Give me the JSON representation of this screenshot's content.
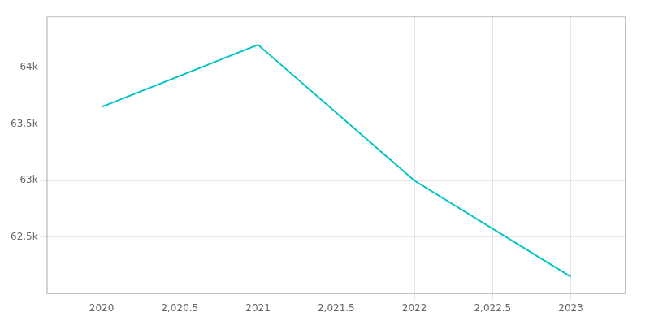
{
  "chart_data": {
    "type": "line",
    "x": [
      2020,
      2021,
      2022,
      2023
    ],
    "values": [
      63650,
      64200,
      63000,
      62150
    ],
    "color": "#00C4C4",
    "xlim": [
      2019.65,
      2023.35
    ],
    "xticks": [
      2020,
      {
        "value": 2020.5,
        "label": "2,020.5"
      },
      2021,
      {
        "value": 2021.5,
        "label": "2,021.5"
      },
      2022,
      {
        "value": 2022.5,
        "label": "2,022.5"
      },
      2023
    ],
    "ylim": [
      62000,
      64450
    ],
    "yticks": [
      {
        "value": 62500,
        "label": "62.5k"
      },
      {
        "value": 63000,
        "label": "63k"
      },
      {
        "value": 63500,
        "label": "63.5k"
      },
      {
        "value": 64000,
        "label": "64k"
      }
    ],
    "grid": true
  }
}
